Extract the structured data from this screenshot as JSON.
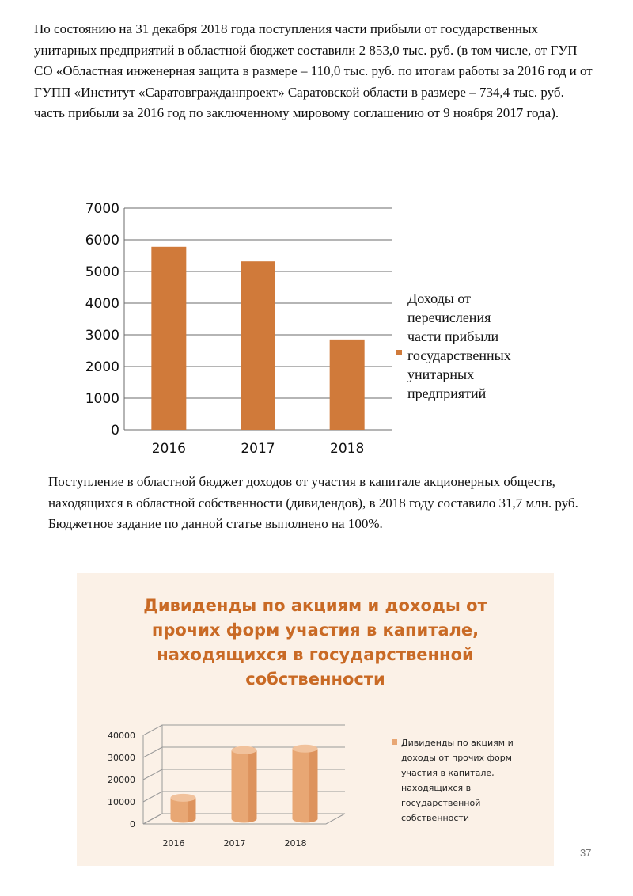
{
  "document": {
    "paragraph1": "По состоянию на 31 декабря 2018 года поступления части прибыли от государственных унитарных предприятий в областной бюджет составили 2 853,0 тыс. руб. (в том числе, от ГУП СО «Областная инженерная защита в размере – 110,0 тыс. руб. по итогам работы за 2016 год и от ГУПП «Институт «Саратовгражданпроект» Саратовской области в размере – 734,4 тыс. руб. часть прибыли за 2016 год по заключенному мировому соглашению от 9 ноября 2017 года).",
    "paragraph2": "Поступление в областной бюджет доходов от участия в капитале акционерных обществ, находящихся в областной собственности (дивидендов), в 2018 году составило 31,7 млн. руб. Бюджетное задание по данной статье выполнено на 100%.",
    "page_number": "37"
  },
  "chart_data": [
    {
      "type": "bar",
      "categories": [
        "2016",
        "2017",
        "2018"
      ],
      "series": [
        {
          "name": "Доходы от перечисления части прибыли государственных унитарных предприятий",
          "name_lines": [
            "Доходы от",
            "перечисления",
            "части прибыли",
            "государственных",
            "унитарных",
            "предприятий"
          ],
          "values": [
            5780,
            5320,
            2853
          ],
          "color": "#d07a3a"
        }
      ],
      "ylim": [
        0,
        7000
      ],
      "yticks": [
        "0",
        "1000",
        "2000",
        "3000",
        "4000",
        "5000",
        "6000",
        "7000"
      ],
      "grid": true,
      "legend": "right"
    },
    {
      "type": "bar",
      "style": "3d-cylinder",
      "title": "Дивиденды по акциям и доходы от прочих форм участия в капитале, находящихся в государственной собственности",
      "title_lines": [
        "Дивиденды по акциям и доходы от",
        "прочих форм участия в капитале,",
        "находящихся в государственной",
        "собственности"
      ],
      "categories": [
        "2016",
        "2017",
        "2018"
      ],
      "series": [
        {
          "name": "Дивиденды по акциям и доходы от прочих форм участия в капитале, находящихся в государственной собственности",
          "name_lines": [
            "Дивиденды по акциям и",
            "доходы от прочих форм",
            "участия в капитале,",
            "находящихся в",
            "государственной",
            "собственности"
          ],
          "values": [
            9500,
            31000,
            31700
          ],
          "color": "#e8a774"
        }
      ],
      "ylim": [
        0,
        40000
      ],
      "yticks": [
        "0",
        "10000",
        "20000",
        "30000",
        "40000"
      ],
      "grid": true,
      "legend": "right",
      "title_color": "#c96a25",
      "background": "#fbf1e7"
    }
  ]
}
